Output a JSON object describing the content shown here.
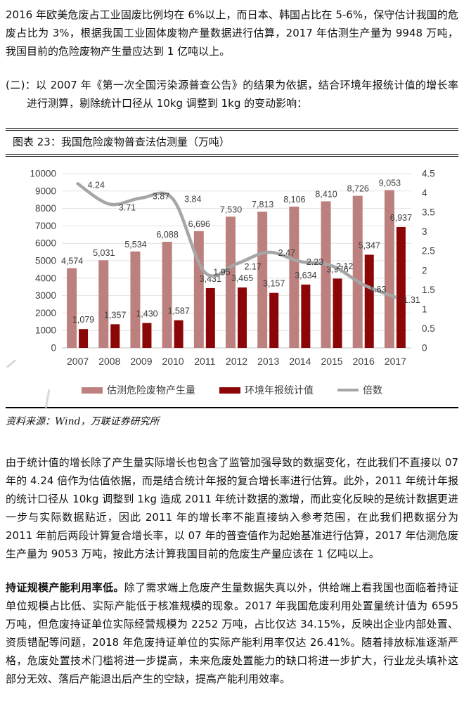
{
  "page": {
    "p1": "2016 年欧美危废占工业固废比例均在 6%以上，而日本、韩国占比在 5-6%，保守估计我国的危废占比为 3%，根据我国工业固体废物产量数据进行估算，2017 年估测生产量为 9948 万吨，我国目前的危险废物产生量应达到 1 亿吨以上。",
    "p2": "(二)：以 2007 年《第一次全国污染源普查公告》的结果为依据，结合环境年报统计值的增长率进行测算，剔除统计口径从 10kg 调整到 1kg 的变动影响：",
    "figure": {
      "title": "图表 23：我国危险废物普查法估测量（万吨）",
      "source": "资料来源：Wind，万联证券研究所"
    },
    "p3": "由于统计值的增长除了产生量实际增长也包含了监管加强导致的数据变化，在此我们不直接以 07 年的 4.24 倍作为估值依据，而是结合统计年报的复合增长率进行估算。此外，2011 年统计年报的统计口径从 10kg 调整到 1kg 造成 2011 年统计数据的激增，而此变化反映的是统计数据更进一步与实际数据贴近，因此 2011 年的增长率不能直接纳入参考范围，在此我们把数据分为 2011 年前后两段计算复合增长率，以 07 年的普查值作为起始基准进行估算，2017 年估测危废生产量为 9053 万吨，按此方法计算我国目前的危废生产量应该在 1 亿吨以上。",
    "p4_lead": "持证规模产能利用率低。",
    "p4_rest": "除了需求端上危废产生量数据失真以外，供给端上看我国也面临着持证单位规模占比低、实际产能低于核准规模的现象。2017 年我国危废利用处置量统计值为 6595 万吨，但危废持证单位实际经营规模为 2252 万吨，占比仅达 34.15%，反映出企业内部处置、资质错配等问题，2018 年危废持证单位的实际产能利用率仅达 26.41%。随着排放标准逐渐严格，危废处置技术门槛将进一步提高，未来危废处置能力的缺口将进一步扩大，行业龙头填补这部分无效、落后产能退出后产生的空缺，提高产能利用效率。"
  },
  "chart_data": {
    "type": "bar",
    "title": "我国危险废物普查法估测量（万吨）",
    "categories": [
      "2007",
      "2008",
      "2009",
      "2010",
      "2011",
      "2012",
      "2013",
      "2014",
      "2015",
      "2016",
      "2017"
    ],
    "series": [
      {
        "name": "估测危险废物产生量",
        "kind": "bar",
        "axis": "left",
        "color": "#BC817E",
        "values": [
          4574,
          5031,
          5534,
          6088,
          6696,
          7530,
          7813,
          8106,
          8410,
          8726,
          9053
        ]
      },
      {
        "name": "环境年报统计值",
        "kind": "bar",
        "axis": "left",
        "color": "#8B0606",
        "values": [
          1079,
          1357,
          1430,
          1587,
          3431,
          3465,
          3157,
          3634,
          3976,
          5347,
          6937
        ]
      },
      {
        "name": "倍数",
        "kind": "line",
        "axis": "right",
        "color": "#A6A6A6",
        "values": [
          4.24,
          3.71,
          3.87,
          3.84,
          1.95,
          2.17,
          2.47,
          2.23,
          2.12,
          1.63,
          1.31
        ]
      }
    ],
    "left_axis": {
      "min": 0,
      "max": 10000,
      "step": 1000
    },
    "right_axis": {
      "min": 0,
      "max": 4.5,
      "step": 0.5
    },
    "grid": true,
    "legend_position": "bottom"
  }
}
